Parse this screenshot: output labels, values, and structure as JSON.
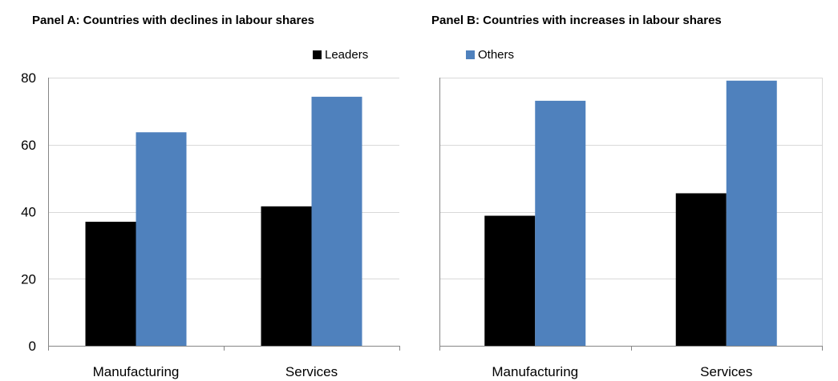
{
  "chart_data": [
    {
      "type": "bar",
      "title": "Panel A: Countries with declines in labour shares",
      "categories": [
        "Manufacturing",
        "Services"
      ],
      "series": [
        {
          "name": "Leaders",
          "values": [
            37,
            41.6
          ]
        },
        {
          "name": "Others",
          "values": [
            63.7,
            74.3
          ]
        }
      ],
      "ylim": [
        0,
        80
      ],
      "yticks": [
        "0",
        "20",
        "40",
        "60",
        "80"
      ],
      "grid": true,
      "legend": "top"
    },
    {
      "type": "bar",
      "title": "Panel B: Countries with increases in labour shares",
      "categories": [
        "Manufacturing",
        "Services"
      ],
      "series": [
        {
          "name": "Leaders",
          "values": [
            38.8,
            45.5
          ]
        },
        {
          "name": "Others",
          "values": [
            73.1,
            79.1
          ]
        }
      ],
      "ylim": [
        0,
        80
      ],
      "grid": true,
      "legend": "top"
    }
  ],
  "legend": {
    "leaders_label": "Leaders",
    "others_label": "Others"
  },
  "colors": {
    "leaders": "#000000",
    "others": "#4f81bd",
    "grid": "#d9d9d9",
    "axis": "#868686"
  }
}
